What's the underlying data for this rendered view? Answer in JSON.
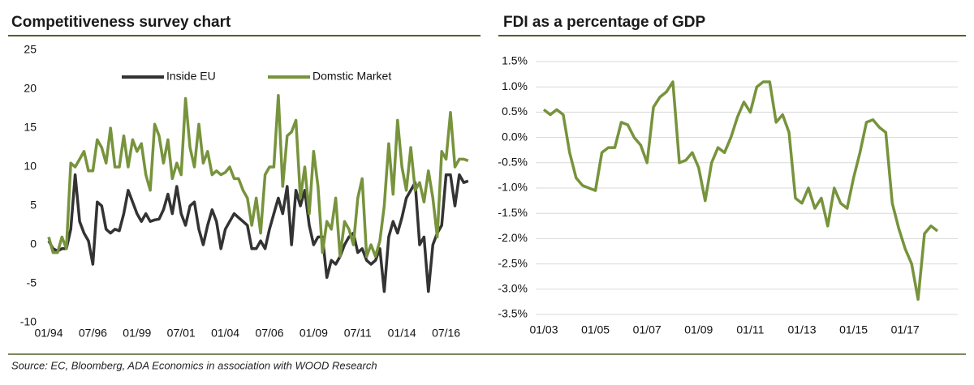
{
  "chart_data": [
    {
      "type": "line",
      "title": "Competitiveness survey chart",
      "categories": [
        "01/94",
        null,
        null,
        null,
        null,
        null,
        null,
        null,
        null,
        null,
        "07/96",
        null,
        null,
        null,
        null,
        null,
        null,
        null,
        null,
        null,
        "01/99",
        null,
        null,
        null,
        null,
        null,
        null,
        null,
        null,
        null,
        "07/01",
        null,
        null,
        null,
        null,
        null,
        null,
        null,
        null,
        null,
        "01/04",
        null,
        null,
        null,
        null,
        null,
        null,
        null,
        null,
        null,
        "07/06",
        null,
        null,
        null,
        null,
        null,
        null,
        null,
        null,
        null,
        "01/09",
        null,
        null,
        null,
        null,
        null,
        null,
        null,
        null,
        null,
        "07/11",
        null,
        null,
        null,
        null,
        null,
        null,
        null,
        null,
        null,
        "01/14",
        null,
        null,
        null,
        null,
        null,
        null,
        null,
        null,
        null,
        "07/16",
        null,
        null,
        null,
        null,
        null
      ],
      "series": [
        {
          "name": "Inside EU",
          "color": "#333333",
          "values": [
            0.5,
            -0.5,
            -0.8,
            -0.5,
            -0.5,
            2,
            9,
            3,
            1.5,
            0.5,
            -2.5,
            5.5,
            5,
            2,
            1.5,
            2,
            1.8,
            4,
            7,
            5.5,
            4,
            3,
            4,
            3,
            3.2,
            3.3,
            4.5,
            6.5,
            4,
            7.5,
            4,
            2.5,
            5,
            5.5,
            2,
            0,
            2.5,
            4.5,
            3,
            -0.5,
            2,
            3,
            4,
            3.5,
            3,
            2.5,
            -0.5,
            -0.5,
            0.5,
            -0.5,
            2,
            4,
            6,
            4,
            7.5,
            0,
            7,
            5,
            7,
            2.5,
            0,
            1,
            1,
            -4.2,
            -2,
            -2.5,
            -1.5,
            0,
            1,
            1.5,
            -1,
            -0.5,
            -2,
            -2.5,
            -2,
            -0.5,
            -6,
            1,
            3,
            1.5,
            3.5,
            6,
            7,
            8,
            0,
            1,
            -6,
            0,
            1.5,
            2.5,
            9,
            9,
            5,
            9,
            8,
            8.2
          ]
        },
        {
          "name": "Domstic Market",
          "color": "#77933c",
          "values": [
            1,
            -1,
            -1,
            1,
            -0.5,
            10.5,
            10,
            11,
            12,
            9.5,
            9.5,
            13.5,
            12.5,
            10.5,
            15,
            10,
            10,
            14,
            10,
            13.5,
            12,
            13,
            9,
            7,
            15.5,
            14,
            10.5,
            13.5,
            8.5,
            10.5,
            9,
            18.8,
            12.5,
            10,
            15.5,
            10.5,
            12,
            9,
            9.5,
            9,
            9.3,
            10,
            8.5,
            8.5,
            7,
            6,
            2.5,
            6,
            1.5,
            9,
            10,
            10,
            19.2,
            7.5,
            14,
            14.5,
            16,
            6,
            10,
            4,
            12,
            7.5,
            -1,
            3,
            2,
            6,
            -1.5,
            3,
            2,
            0,
            6,
            8.5,
            -1.5,
            0,
            -1.5,
            0.5,
            5,
            13,
            6.5,
            16,
            10,
            7,
            12.5,
            7,
            8,
            5.5,
            9.5,
            6,
            1,
            12,
            11,
            17,
            10,
            11,
            11,
            10.8
          ]
        }
      ],
      "ylim": [
        -10,
        25
      ],
      "yticks": [
        -10,
        -5,
        0,
        5,
        10,
        15,
        20,
        25
      ],
      "grid": false,
      "legend": "top"
    },
    {
      "type": "line",
      "title": "FDI as a percentage of GDP",
      "categories": [
        "01/03",
        null,
        null,
        null,
        null,
        null,
        null,
        null,
        "01/05",
        null,
        null,
        null,
        null,
        null,
        null,
        null,
        "01/07",
        null,
        null,
        null,
        null,
        null,
        null,
        null,
        "01/09",
        null,
        null,
        null,
        null,
        null,
        null,
        null,
        "01/11",
        null,
        null,
        null,
        null,
        null,
        null,
        null,
        "01/13",
        null,
        null,
        null,
        null,
        null,
        null,
        null,
        "01/15",
        null,
        null,
        null,
        null,
        null,
        null,
        null,
        "01/17",
        null,
        null,
        null,
        null,
        null
      ],
      "color": "#77933c",
      "values": [
        0.55,
        0.45,
        0.55,
        0.45,
        -0.3,
        -0.8,
        -0.95,
        -1.0,
        -1.05,
        -0.3,
        -0.2,
        -0.2,
        0.3,
        0.25,
        0.0,
        -0.15,
        -0.5,
        0.6,
        0.8,
        0.9,
        1.1,
        -0.5,
        -0.45,
        -0.3,
        -0.6,
        -1.25,
        -0.5,
        -0.2,
        -0.3,
        0.0,
        0.4,
        0.7,
        0.5,
        1.0,
        1.1,
        1.1,
        0.3,
        0.45,
        0.1,
        -1.2,
        -1.3,
        -1.0,
        -1.4,
        -1.2,
        -1.75,
        -1.0,
        -1.3,
        -1.4,
        -0.8,
        -0.3,
        0.3,
        0.35,
        0.2,
        0.1,
        -1.3,
        -1.8,
        -2.2,
        -2.5,
        -3.2,
        -1.9,
        -1.75,
        -1.85
      ],
      "ylim": [
        -3.5,
        1.5
      ],
      "yticks": [
        {
          "value": -3.5,
          "label": "-3.5%"
        },
        {
          "value": -3.0,
          "label": "-3.0%"
        },
        {
          "value": -2.5,
          "label": "-2.5%"
        },
        {
          "value": -2.0,
          "label": "-2.0%"
        },
        {
          "value": -1.5,
          "label": "-1.5%"
        },
        {
          "value": -1.0,
          "label": "-1.0%"
        },
        {
          "value": -0.5,
          "label": "-0.5%"
        },
        {
          "value": 0.0,
          "label": "0.0%"
        },
        {
          "value": 0.5,
          "label": "0.5%"
        },
        {
          "value": 1.0,
          "label": "1.0%"
        },
        {
          "value": 1.5,
          "label": "1.5%"
        }
      ],
      "grid": true
    }
  ],
  "source": "Source: EC, Bloomberg, ADA Economics in association with WOOD Research"
}
